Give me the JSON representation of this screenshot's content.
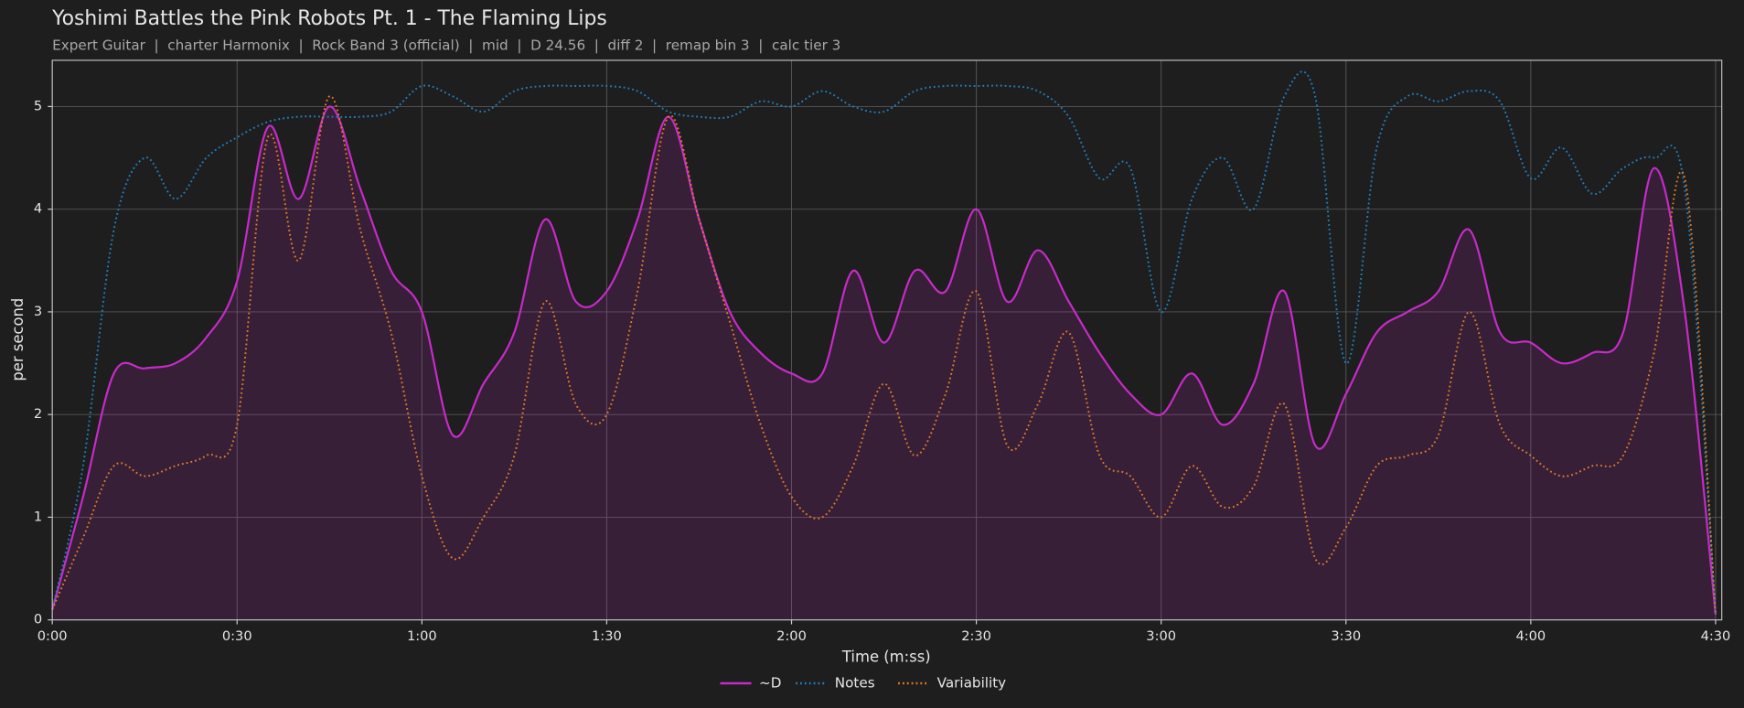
{
  "chart_data": {
    "type": "line",
    "title": "Yoshimi Battles the Pink Robots Pt. 1 - The Flaming Lips",
    "subtitle": "Expert Guitar  |  charter Harmonix  |  Rock Band 3 (official)  |  mid  |  D 24.56  |  diff 2  |  remap bin 3  |  calc tier 3",
    "xlabel": "Time (m:ss)",
    "ylabel": "per second",
    "x": [
      0,
      5,
      10,
      15,
      20,
      25,
      30,
      35,
      40,
      45,
      50,
      55,
      60,
      65,
      70,
      75,
      80,
      85,
      90,
      95,
      100,
      105,
      110,
      115,
      120,
      125,
      130,
      135,
      140,
      145,
      150,
      155,
      160,
      165,
      170,
      175,
      180,
      185,
      190,
      195,
      200,
      205,
      210,
      215,
      220,
      225,
      230,
      235,
      240,
      245,
      250,
      255,
      260,
      265,
      270
    ],
    "xlim": [
      0,
      271
    ],
    "xticks": [
      {
        "value": 0,
        "label": "0:00"
      },
      {
        "value": 30,
        "label": "0:30"
      },
      {
        "value": 60,
        "label": "1:00"
      },
      {
        "value": 90,
        "label": "1:30"
      },
      {
        "value": 120,
        "label": "2:00"
      },
      {
        "value": 150,
        "label": "2:30"
      },
      {
        "value": 180,
        "label": "3:00"
      },
      {
        "value": 210,
        "label": "3:30"
      },
      {
        "value": 240,
        "label": "4:00"
      },
      {
        "value": 270,
        "label": "4:30"
      }
    ],
    "ylim": [
      0,
      5.45
    ],
    "yticks": [
      0,
      1,
      2,
      3,
      4,
      5
    ],
    "grid": true,
    "legend": "bottom",
    "series": [
      {
        "name": "~D",
        "color": "#c72bc9",
        "style": "solid",
        "fill": true,
        "values": [
          0.1,
          1.2,
          2.4,
          2.45,
          2.5,
          2.75,
          3.3,
          4.8,
          4.1,
          5.0,
          4.2,
          3.4,
          3.0,
          1.8,
          2.3,
          2.8,
          3.9,
          3.1,
          3.2,
          3.9,
          4.9,
          3.9,
          3.0,
          2.6,
          2.4,
          2.4,
          3.4,
          2.7,
          3.4,
          3.2,
          4.0,
          3.1,
          3.6,
          3.1,
          2.6,
          2.2,
          2.0,
          2.4,
          1.9,
          2.3,
          3.2,
          1.7,
          2.2,
          2.8,
          3.0,
          3.2,
          3.8,
          2.8,
          2.7,
          2.5,
          2.6,
          2.8,
          4.4,
          3.0,
          0.05
        ]
      },
      {
        "name": "Notes",
        "color": "#1f7fc0",
        "style": "dotted",
        "values": [
          0.1,
          1.5,
          3.8,
          4.5,
          4.1,
          4.5,
          4.7,
          4.85,
          4.9,
          4.9,
          4.9,
          4.95,
          5.2,
          5.1,
          4.95,
          5.15,
          5.2,
          5.2,
          5.2,
          5.15,
          4.95,
          4.9,
          4.9,
          5.05,
          5.0,
          5.15,
          5.0,
          4.95,
          5.15,
          5.2,
          5.2,
          5.2,
          5.15,
          4.9,
          4.3,
          4.4,
          3.0,
          4.1,
          4.5,
          4.0,
          5.1,
          5.1,
          2.5,
          4.6,
          5.1,
          5.05,
          5.15,
          5.05,
          4.3,
          4.6,
          4.15,
          4.4,
          4.5,
          4.2,
          0.05
        ]
      },
      {
        "name": "Variability",
        "color": "#e07b24",
        "style": "dotted",
        "values": [
          0.1,
          0.8,
          1.5,
          1.4,
          1.5,
          1.6,
          1.9,
          4.7,
          3.5,
          5.1,
          3.8,
          2.8,
          1.4,
          0.6,
          1.0,
          1.6,
          3.1,
          2.1,
          2.0,
          3.2,
          4.9,
          3.9,
          2.9,
          1.9,
          1.2,
          1.0,
          1.5,
          2.3,
          1.6,
          2.2,
          3.2,
          1.7,
          2.1,
          2.8,
          1.6,
          1.4,
          1.0,
          1.5,
          1.1,
          1.3,
          2.1,
          0.6,
          0.9,
          1.5,
          1.6,
          1.8,
          3.0,
          1.9,
          1.6,
          1.4,
          1.5,
          1.6,
          2.6,
          4.3,
          0.05
        ]
      }
    ]
  }
}
